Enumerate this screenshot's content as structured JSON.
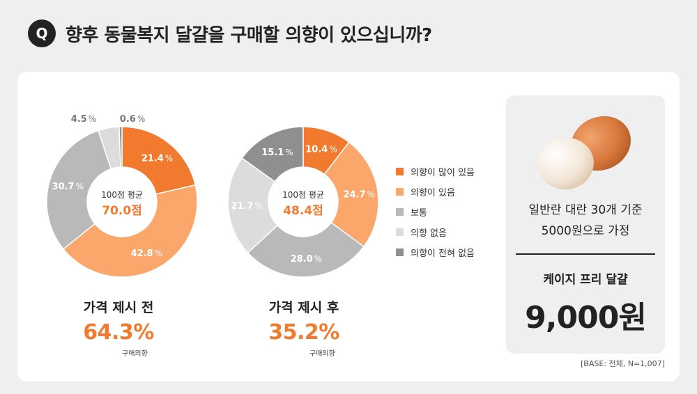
{
  "header": {
    "badge": "Q",
    "title": "향후 동물복지 달걀을 구매할 의향이 있으십니까?"
  },
  "colors": {
    "accent": "#f27a2e",
    "series": [
      "#f27a2e",
      "#fba66b",
      "#b9b9b9",
      "#dcdcdc",
      "#8f8f8f"
    ]
  },
  "chart_data": [
    {
      "type": "pie",
      "title": "가격 제시 전",
      "center_label": "100점 평균",
      "center_value": "70.0점",
      "summary_value": "64.3%",
      "summary_note": "구매의향",
      "categories": [
        "의향이 많이 있음",
        "의향이 있음",
        "보통",
        "의향 없음",
        "의향이 전혀 없음"
      ],
      "values": [
        21.4,
        42.8,
        30.7,
        4.5,
        0.6
      ]
    },
    {
      "type": "pie",
      "title": "가격 제시 후",
      "center_label": "100점 평균",
      "center_value": "48.4점",
      "summary_value": "35.2%",
      "summary_note": "구매의향",
      "categories": [
        "의향이 많이 있음",
        "의향이 있음",
        "보통",
        "의향 없음",
        "의향이 전혀 없음"
      ],
      "values": [
        10.4,
        24.7,
        28.0,
        21.7,
        15.1
      ]
    }
  ],
  "legend": {
    "items": [
      {
        "label": "의향이 많이 있음",
        "color": "#f27a2e"
      },
      {
        "label": "의향이 있음",
        "color": "#fba66b"
      },
      {
        "label": "보통",
        "color": "#b9b9b9"
      },
      {
        "label": "의향 없음",
        "color": "#dcdcdc"
      },
      {
        "label": "의향이 전혀 없음",
        "color": "#8f8f8f"
      }
    ]
  },
  "side": {
    "line1": "일반란 대란 30개 기준",
    "line2": "5000원으로 가정",
    "label": "케이지 프리 달걀",
    "price": "9,000원",
    "icon": "eggs-icon"
  },
  "base_note": "[BASE: 전체, N=1,007]"
}
